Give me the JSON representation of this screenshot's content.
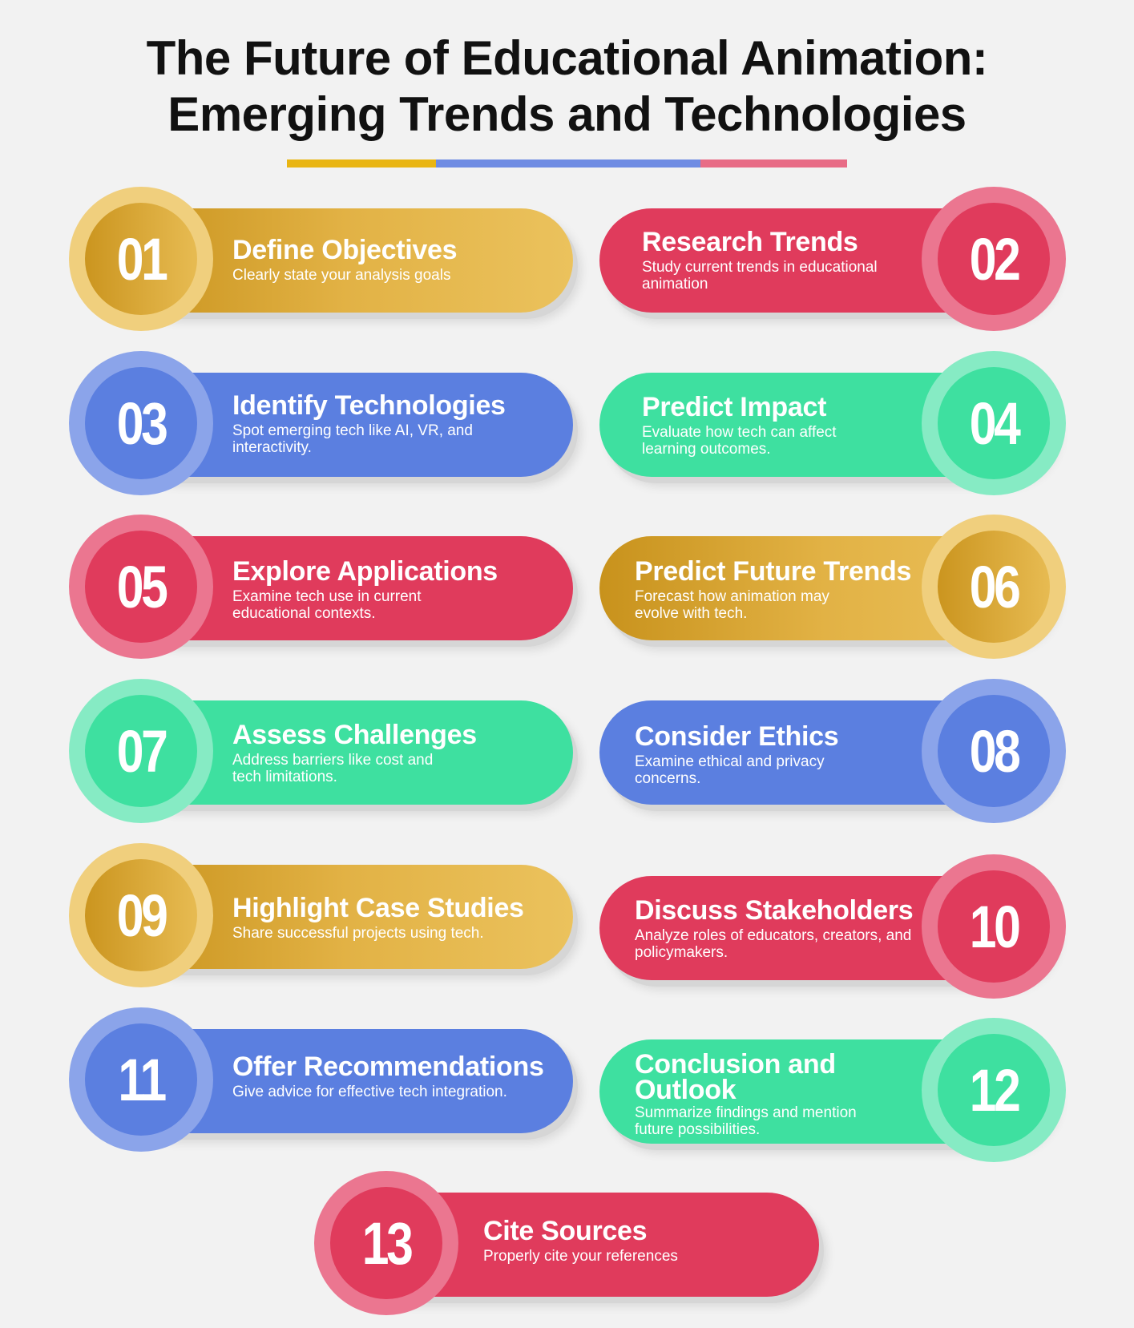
{
  "title_line1": "The Future of Educational Animation:",
  "title_line2": "Emerging Trends and Technologies",
  "colors": {
    "yellow": "#e2b245",
    "red": "#e03b5c",
    "blue": "#5b7fe0",
    "green": "#3ee0a0"
  },
  "steps": [
    {
      "num": "01",
      "title": "Define Objectives",
      "desc": "Clearly state your analysis goals",
      "color": "yellow"
    },
    {
      "num": "02",
      "title": "Research Trends",
      "desc": "Study current trends in educational animation",
      "color": "red"
    },
    {
      "num": "03",
      "title": "Identify Technologies",
      "desc": "Spot emerging tech like AI, VR, and interactivity.",
      "color": "blue"
    },
    {
      "num": "04",
      "title": "Predict Impact",
      "desc": "Evaluate how tech can affect learning outcomes.",
      "color": "green"
    },
    {
      "num": "05",
      "title": "Explore Applications",
      "desc": "Examine tech use in current educational contexts.",
      "color": "red"
    },
    {
      "num": "06",
      "title": "Predict Future Trends",
      "desc": "Forecast how animation may evolve with tech.",
      "color": "yellow"
    },
    {
      "num": "07",
      "title": "Assess Challenges",
      "desc": "Address barriers like cost and tech limitations.",
      "color": "green"
    },
    {
      "num": "08",
      "title": "Consider Ethics",
      "desc": "Examine ethical and privacy concerns.",
      "color": "blue"
    },
    {
      "num": "09",
      "title": "Highlight Case Studies",
      "desc": "Share successful projects using tech.",
      "color": "yellow"
    },
    {
      "num": "10",
      "title": "Discuss Stakeholders",
      "desc": "Analyze roles of educators, creators, and policymakers.",
      "color": "red"
    },
    {
      "num": "11",
      "title": "Offer Recommendations",
      "desc": "Give advice for effective tech integration.",
      "color": "blue"
    },
    {
      "num": "12",
      "title": "Conclusion and Outlook",
      "desc": "Summarize findings and mention future possibilities.",
      "color": "green"
    },
    {
      "num": "13",
      "title": "Cite Sources",
      "desc": "Properly cite your references",
      "color": "red"
    }
  ]
}
